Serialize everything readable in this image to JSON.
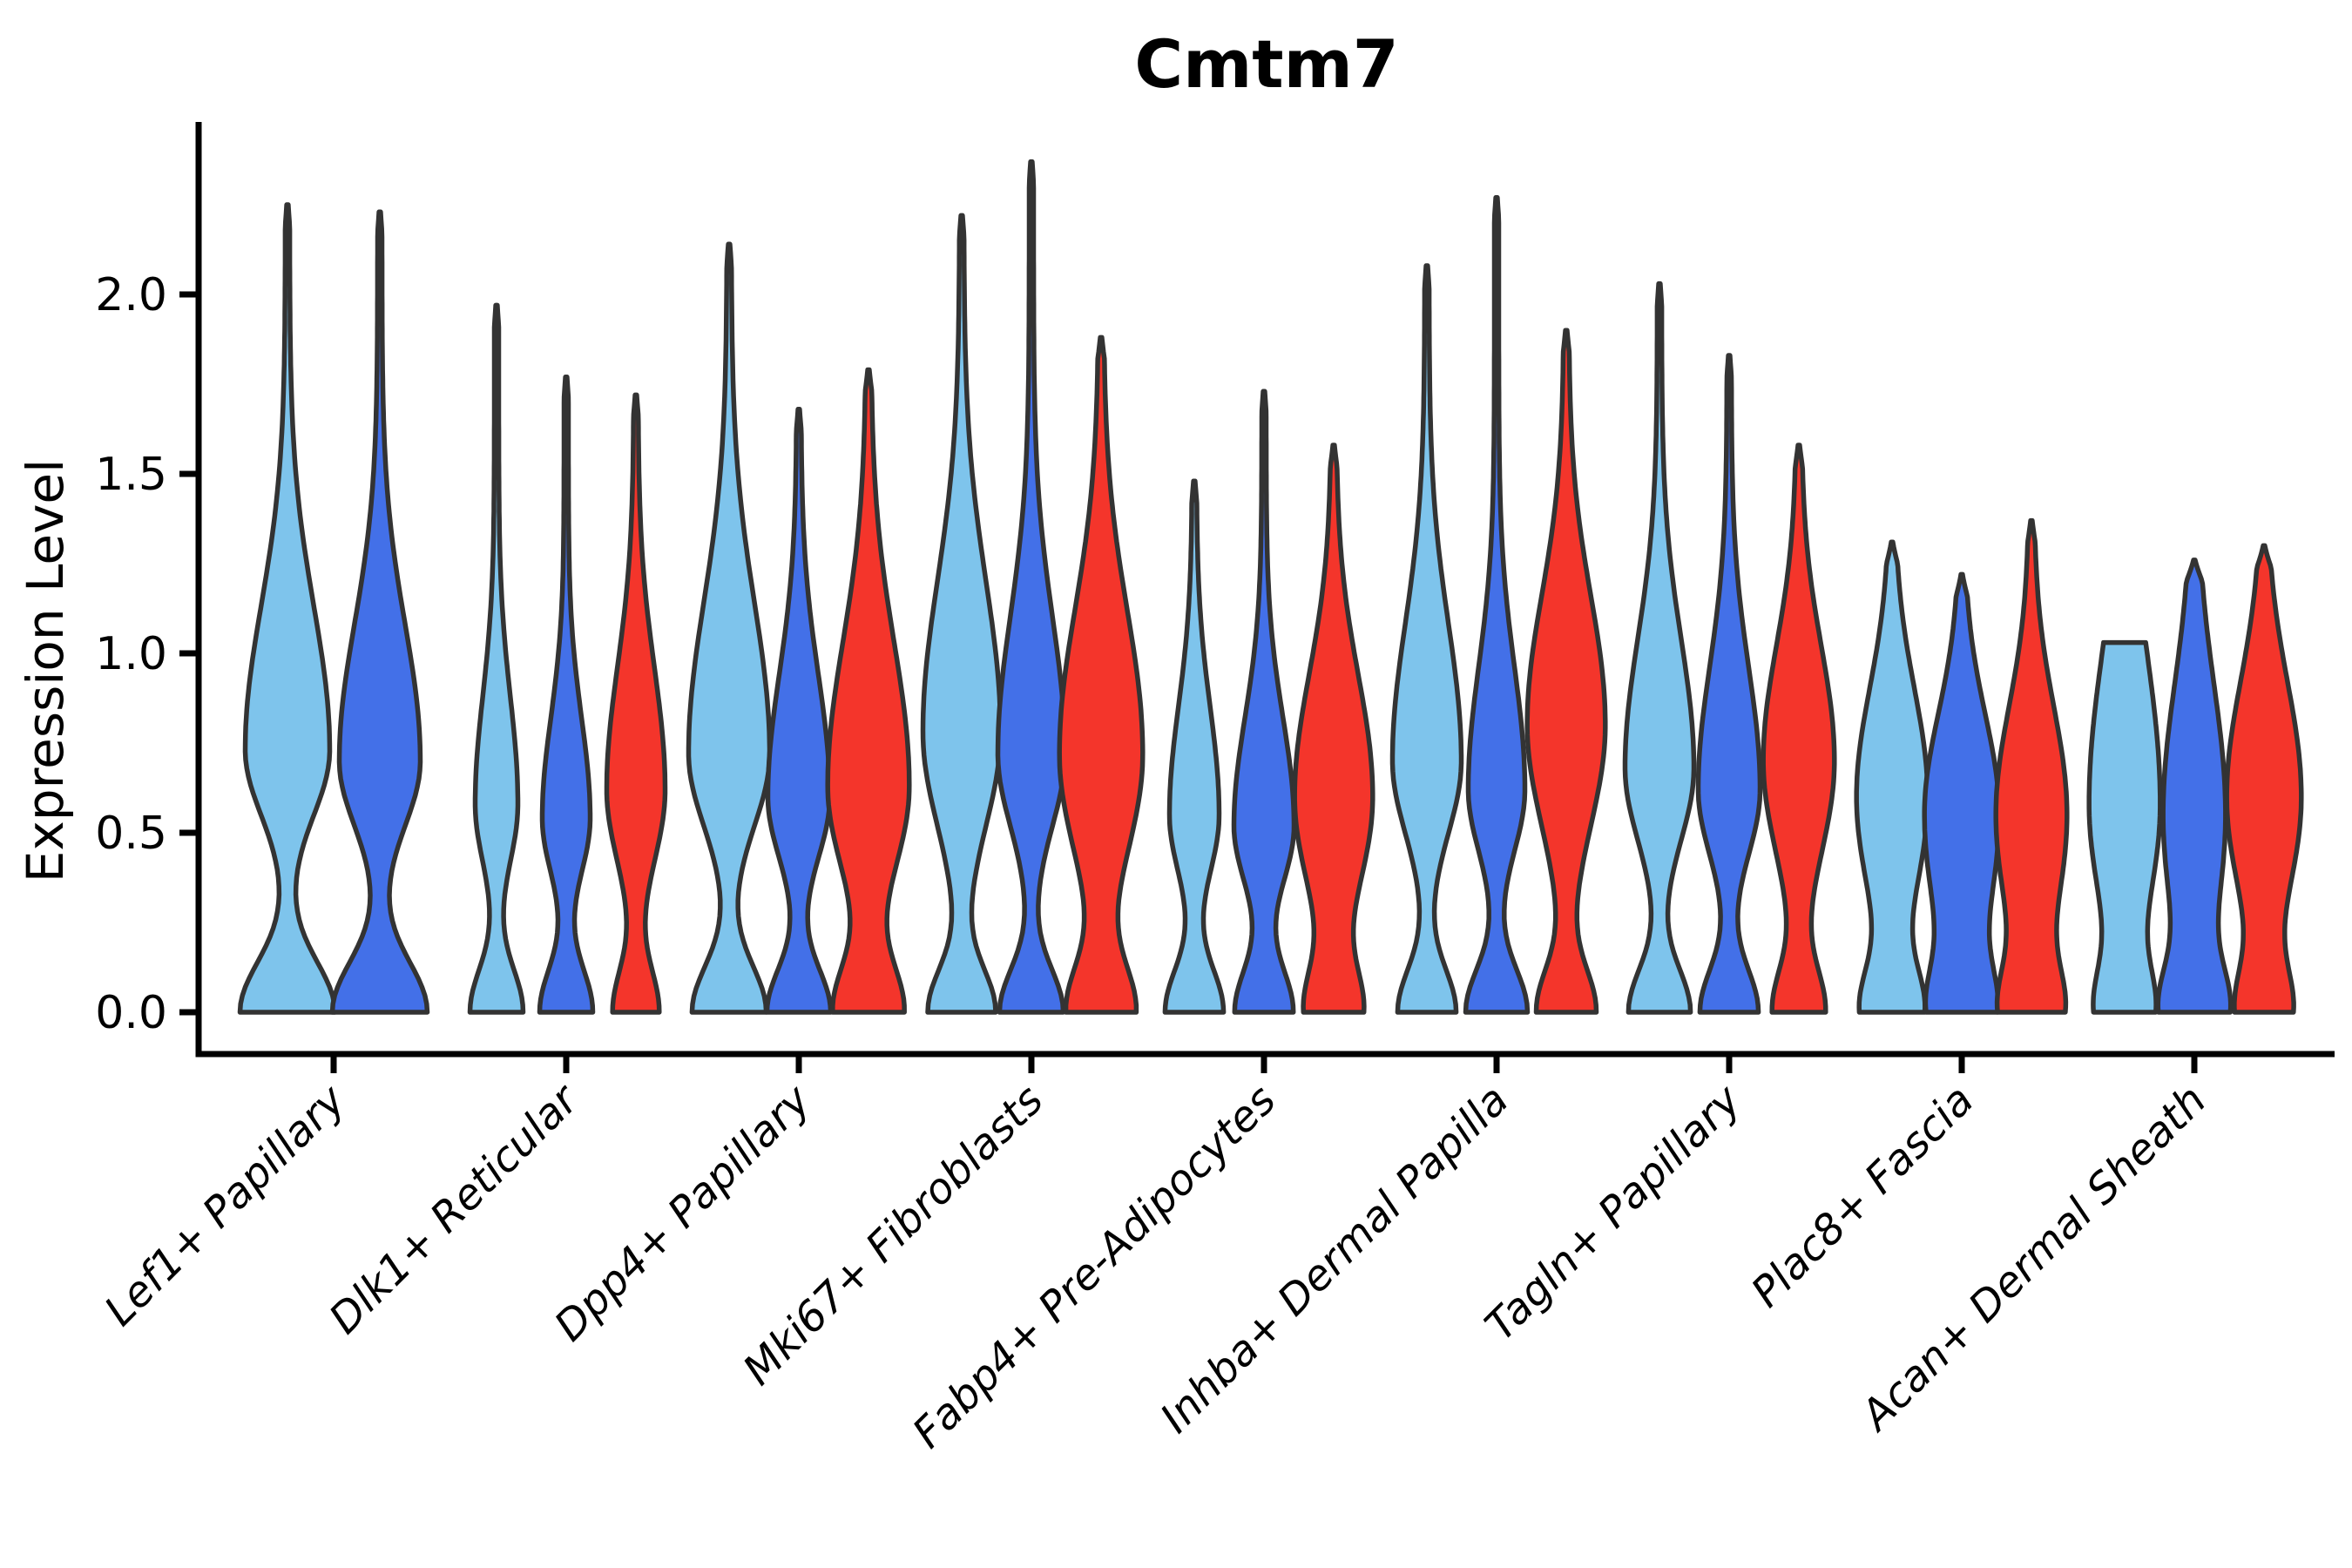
{
  "chart_data": {
    "type": "violin",
    "title": "Cmtm7",
    "xlabel": "",
    "ylabel": "Expression Level",
    "ylim": [
      -0.17,
      2.48
    ],
    "yticks": [
      0.0,
      0.5,
      1.0,
      1.5,
      2.0
    ],
    "ytick_labels": [
      "0.0",
      "0.5",
      "1.0",
      "1.5",
      "2.0"
    ],
    "grid": false,
    "legend": "none",
    "categories": [
      "Lef1+ Papillary",
      "Dlk1+ Reticular",
      "Dpp4+ Papillary",
      "Mki67+ Fibroblasts",
      "Fabp4+ Pre-Adipocytes",
      "Inhba+ Dermal Papilla",
      "Tagln+ Papillary",
      "Plac8+ Fascia",
      "Acan+ Dermal Sheath"
    ],
    "series_colors": {
      "light_blue": "#7EC4EC",
      "royal_blue": "#4370E8",
      "red": "#F4352B"
    },
    "groups": [
      {
        "category": "Lef1+ Papillary",
        "slug": "lef1-papillary",
        "violins": [
          {
            "color_key": "light_blue",
            "max_expression": 2.25,
            "shape": {
              "base_w": 52,
              "base_sig": 0.14,
              "mode": 0.73,
              "sig_down": 0.18,
              "sig_up": 0.4,
              "mode_w": 46,
              "tail_w": 2.5,
              "flat_top_w": 0
            }
          },
          {
            "color_key": "royal_blue",
            "max_expression": 2.23,
            "shape": {
              "base_w": 52,
              "base_sig": 0.14,
              "mode": 0.7,
              "sig_down": 0.18,
              "sig_up": 0.38,
              "mode_w": 44,
              "tail_w": 2.5,
              "flat_top_w": 0
            }
          }
        ]
      },
      {
        "category": "Dlk1+ Reticular",
        "slug": "dlk1-reticular",
        "violins": [
          {
            "color_key": "light_blue",
            "max_expression": 1.97,
            "shape": {
              "base_w": 28,
              "base_sig": 0.12,
              "mode": 0.58,
              "sig_down": 0.16,
              "sig_up": 0.3,
              "mode_w": 22,
              "tail_w": 2.5,
              "flat_top_w": 0
            }
          },
          {
            "color_key": "royal_blue",
            "max_expression": 1.77,
            "shape": {
              "base_w": 28,
              "base_sig": 0.12,
              "mode": 0.54,
              "sig_down": 0.15,
              "sig_up": 0.28,
              "mode_w": 25,
              "tail_w": 2.5,
              "flat_top_w": 0
            }
          },
          {
            "color_key": "red",
            "max_expression": 1.72,
            "shape": {
              "base_w": 24,
              "base_sig": 0.12,
              "mode": 0.62,
              "sig_down": 0.2,
              "sig_up": 0.34,
              "mode_w": 31,
              "tail_w": 2.5,
              "flat_top_w": 0
            }
          }
        ]
      },
      {
        "category": "Dpp4+ Papillary",
        "slug": "dpp4-papillary",
        "violins": [
          {
            "color_key": "light_blue",
            "max_expression": 2.14,
            "shape": {
              "base_w": 40,
              "base_sig": 0.13,
              "mode": 0.72,
              "sig_down": 0.2,
              "sig_up": 0.42,
              "mode_w": 44,
              "tail_w": 2.5,
              "flat_top_w": 0
            }
          },
          {
            "color_key": "royal_blue",
            "max_expression": 1.68,
            "shape": {
              "base_w": 34,
              "base_sig": 0.12,
              "mode": 0.6,
              "sig_down": 0.17,
              "sig_up": 0.34,
              "mode_w": 33,
              "tail_w": 2.5,
              "flat_top_w": 0
            }
          },
          {
            "color_key": "red",
            "max_expression": 1.79,
            "shape": {
              "base_w": 37,
              "base_sig": 0.13,
              "mode": 0.63,
              "sig_down": 0.24,
              "sig_up": 0.4,
              "mode_w": 44,
              "tail_w": 2.8,
              "flat_top_w": 0
            }
          }
        ]
      },
      {
        "category": "Mki67+ Fibroblasts",
        "slug": "mki67-fibroblasts",
        "violins": [
          {
            "color_key": "light_blue",
            "max_expression": 2.22,
            "shape": {
              "base_w": 36,
              "base_sig": 0.12,
              "mode": 0.78,
              "sig_down": 0.26,
              "sig_up": 0.42,
              "mode_w": 42,
              "tail_w": 2.5,
              "flat_top_w": 0
            }
          },
          {
            "color_key": "royal_blue",
            "max_expression": 2.37,
            "shape": {
              "base_w": 34,
              "base_sig": 0.12,
              "mode": 0.72,
              "sig_down": 0.2,
              "sig_up": 0.38,
              "mode_w": 36,
              "tail_w": 2.5,
              "flat_top_w": 0
            }
          },
          {
            "color_key": "red",
            "max_expression": 1.88,
            "shape": {
              "base_w": 36,
              "base_sig": 0.13,
              "mode": 0.72,
              "sig_down": 0.28,
              "sig_up": 0.4,
              "mode_w": 45,
              "tail_w": 2.8,
              "flat_top_w": 0
            }
          }
        ]
      },
      {
        "category": "Fabp4+ Pre-Adipocytes",
        "slug": "fabp4-pre-adipocytes",
        "violins": [
          {
            "color_key": "light_blue",
            "max_expression": 1.48,
            "shape": {
              "base_w": 31,
              "base_sig": 0.12,
              "mode": 0.55,
              "sig_down": 0.16,
              "sig_up": 0.3,
              "mode_w": 26,
              "tail_w": 2.5,
              "flat_top_w": 0
            }
          },
          {
            "color_key": "royal_blue",
            "max_expression": 1.73,
            "shape": {
              "base_w": 31,
              "base_sig": 0.12,
              "mode": 0.52,
              "sig_down": 0.16,
              "sig_up": 0.3,
              "mode_w": 32,
              "tail_w": 2.5,
              "flat_top_w": 0
            }
          },
          {
            "color_key": "red",
            "max_expression": 1.58,
            "shape": {
              "base_w": 29,
              "base_sig": 0.12,
              "mode": 0.6,
              "sig_down": 0.26,
              "sig_up": 0.34,
              "mode_w": 42,
              "tail_w": 2.8,
              "flat_top_w": 0
            }
          }
        ]
      },
      {
        "category": "Inhba+ Dermal Papilla",
        "slug": "inhba-dermal-papilla",
        "violins": [
          {
            "color_key": "light_blue",
            "max_expression": 2.08,
            "shape": {
              "base_w": 31,
              "base_sig": 0.12,
              "mode": 0.7,
              "sig_down": 0.2,
              "sig_up": 0.38,
              "mode_w": 37,
              "tail_w": 2.5,
              "flat_top_w": 0
            }
          },
          {
            "color_key": "royal_blue",
            "max_expression": 2.27,
            "shape": {
              "base_w": 33,
              "base_sig": 0.12,
              "mode": 0.62,
              "sig_down": 0.17,
              "sig_up": 0.34,
              "mode_w": 30,
              "tail_w": 2.5,
              "flat_top_w": 0
            }
          },
          {
            "color_key": "red",
            "max_expression": 1.9,
            "shape": {
              "base_w": 31,
              "base_sig": 0.12,
              "mode": 0.8,
              "sig_down": 0.28,
              "sig_up": 0.36,
              "mode_w": 42,
              "tail_w": 2.8,
              "flat_top_w": 0
            }
          }
        ]
      },
      {
        "category": "Tagln+ Papillary",
        "slug": "tagln-papillary",
        "violins": [
          {
            "color_key": "light_blue",
            "max_expression": 2.03,
            "shape": {
              "base_w": 33,
              "base_sig": 0.12,
              "mode": 0.68,
              "sig_down": 0.2,
              "sig_up": 0.36,
              "mode_w": 37,
              "tail_w": 2.5,
              "flat_top_w": 0
            }
          },
          {
            "color_key": "royal_blue",
            "max_expression": 1.83,
            "shape": {
              "base_w": 31,
              "base_sig": 0.12,
              "mode": 0.62,
              "sig_down": 0.18,
              "sig_up": 0.34,
              "mode_w": 33,
              "tail_w": 2.5,
              "flat_top_w": 0
            }
          },
          {
            "color_key": "red",
            "max_expression": 1.58,
            "shape": {
              "base_w": 27,
              "base_sig": 0.12,
              "mode": 0.7,
              "sig_down": 0.26,
              "sig_up": 0.32,
              "mode_w": 38,
              "tail_w": 2.8,
              "flat_top_w": 0
            }
          }
        ]
      },
      {
        "category": "Plac8+ Fascia",
        "slug": "plac8-fascia",
        "violins": [
          {
            "color_key": "light_blue",
            "max_expression": 1.31,
            "shape": {
              "base_w": 31,
              "base_sig": 0.12,
              "mode": 0.6,
              "sig_down": 0.28,
              "sig_up": 0.3,
              "mode_w": 38,
              "tail_w": 2.8,
              "flat_top_w": 0
            }
          },
          {
            "color_key": "royal_blue",
            "max_expression": 1.22,
            "shape": {
              "base_w": 29,
              "base_sig": 0.12,
              "mode": 0.55,
              "sig_down": 0.32,
              "sig_up": 0.28,
              "mode_w": 40,
              "tail_w": 2.8,
              "flat_top_w": 0
            }
          },
          {
            "color_key": "red",
            "max_expression": 1.37,
            "shape": {
              "base_w": 29,
              "base_sig": 0.12,
              "mode": 0.55,
              "sig_down": 0.3,
              "sig_up": 0.3,
              "mode_w": 38,
              "tail_w": 2.8,
              "flat_top_w": 0
            }
          }
        ]
      },
      {
        "category": "Acan+ Dermal Sheath",
        "slug": "acan-dermal-sheath",
        "violins": [
          {
            "color_key": "light_blue",
            "max_expression": 1.03,
            "shape": {
              "base_w": 27,
              "base_sig": 0.12,
              "mode": 0.58,
              "sig_down": 0.3,
              "sig_up": 0.42,
              "mode_w": 38,
              "tail_w": 2.8,
              "flat_top_w": 26
            }
          },
          {
            "color_key": "royal_blue",
            "max_expression": 1.26,
            "shape": {
              "base_w": 31,
              "base_sig": 0.12,
              "mode": 0.55,
              "sig_down": 0.32,
              "sig_up": 0.36,
              "mode_w": 33,
              "tail_w": 2.8,
              "flat_top_w": 0
            }
          },
          {
            "color_key": "red",
            "max_expression": 1.3,
            "shape": {
              "base_w": 27,
              "base_sig": 0.12,
              "mode": 0.6,
              "sig_down": 0.28,
              "sig_up": 0.32,
              "mode_w": 40,
              "tail_w": 2.8,
              "flat_top_w": 0
            }
          }
        ]
      }
    ]
  },
  "style": {
    "background": "#FFFFFF",
    "outline_color": "#333333",
    "axis_color": "#000000",
    "text_color": "#000000"
  }
}
